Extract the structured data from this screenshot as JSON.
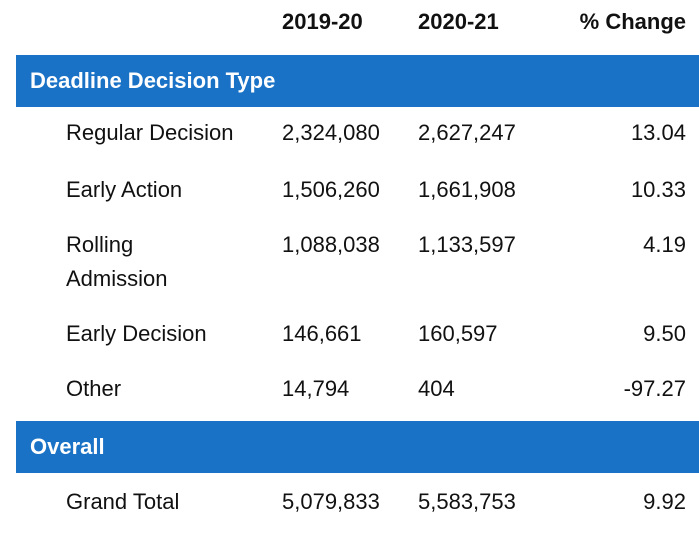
{
  "table": {
    "columns": [
      "2019-20",
      "2020-21",
      "% Change"
    ],
    "sections": [
      {
        "title": "Deadline Decision Type",
        "rows": [
          [
            "Regular Decision",
            "2,324,080",
            "2,627,247",
            "13.04"
          ],
          [
            "Early Action",
            "1,506,260",
            "1,661,908",
            "10.33"
          ],
          [
            "Rolling Admission",
            "1,088,038",
            "1,133,597",
            "4.19"
          ],
          [
            "Early Decision",
            "146,661",
            "160,597",
            "9.50"
          ],
          [
            "Other",
            "14,794",
            "404",
            "-97.27"
          ]
        ]
      },
      {
        "title": "Overall",
        "rows": [
          [
            "Grand Total",
            "5,079,833",
            "5,583,753",
            "9.92"
          ]
        ]
      }
    ]
  }
}
